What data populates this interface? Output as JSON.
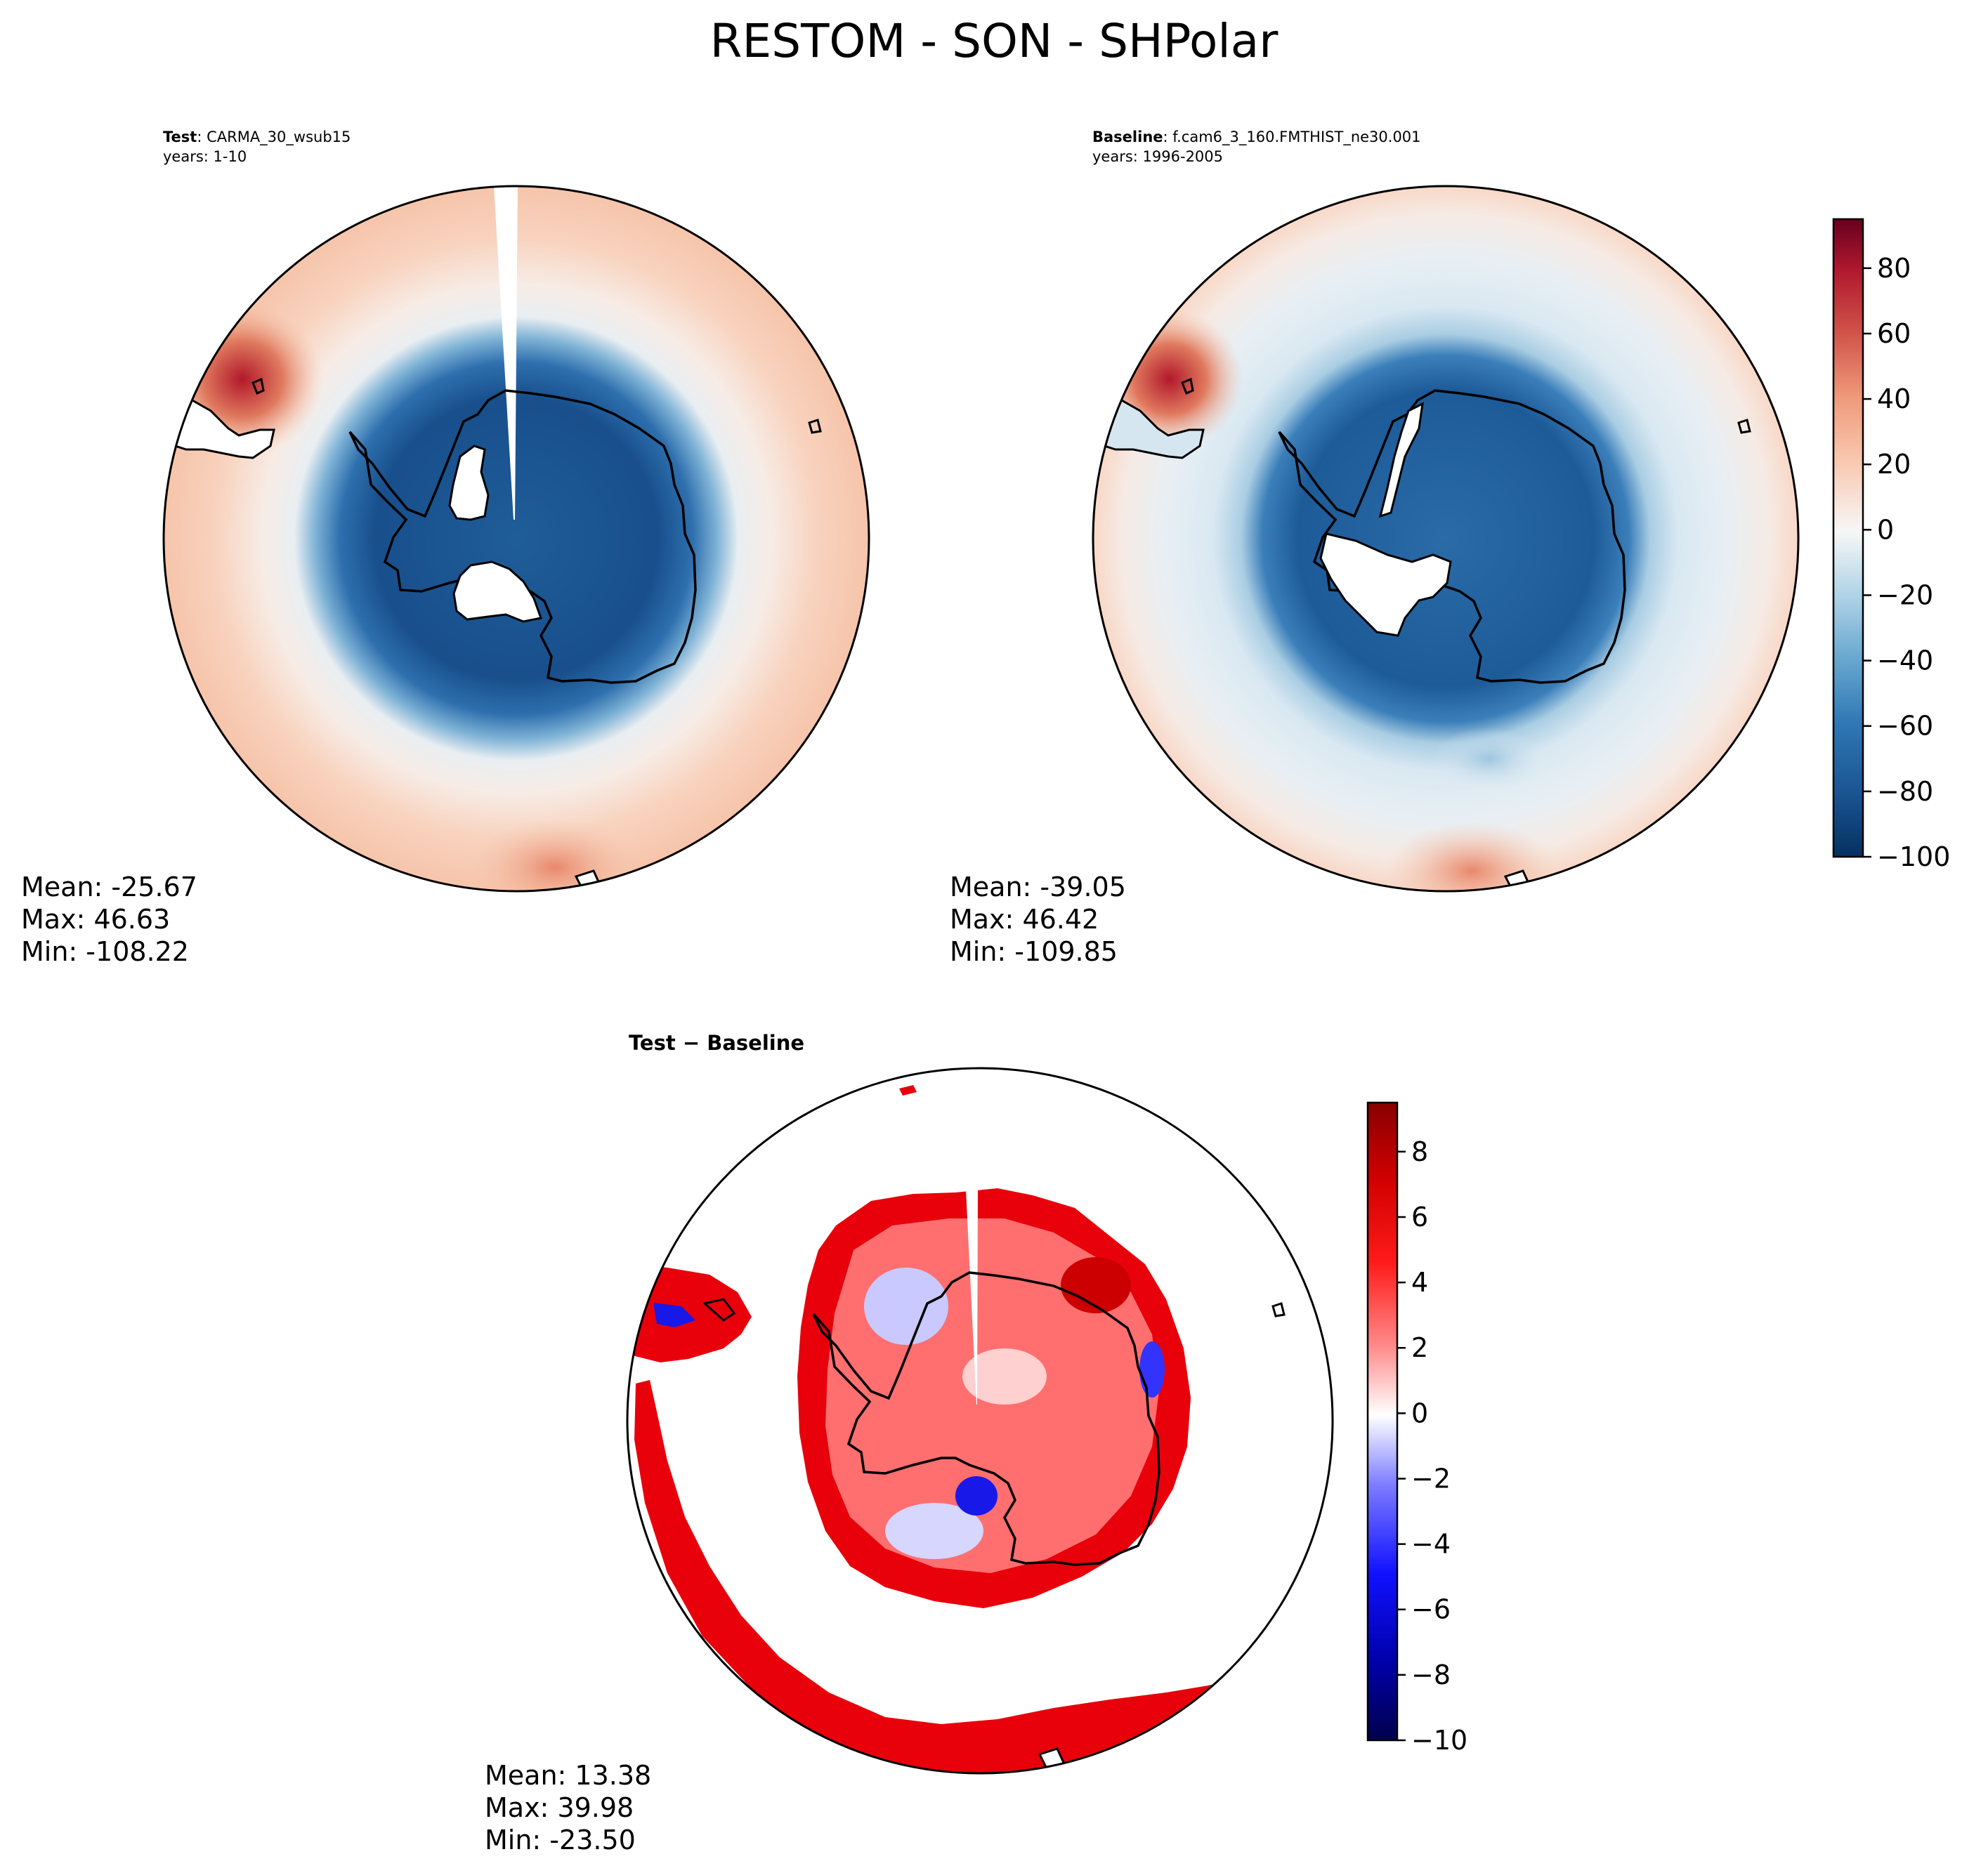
{
  "figure": {
    "title": "RESTOM - SON - SHPolar"
  },
  "panels": [
    {
      "id": "test",
      "label_bold": "Test",
      "label_rest": ": CARMA_30_wsub15",
      "years": "years: 1-10",
      "stats": {
        "mean": "Mean: -25.67",
        "max": "Max: 46.63",
        "min": "Min: -108.22"
      }
    },
    {
      "id": "baseline",
      "label_bold": "Baseline",
      "label_rest": ": f.cam6_3_160.FMTHIST_ne30.001",
      "years": "years: 1996-2005",
      "stats": {
        "mean": "Mean: -39.05",
        "max": "Max: 46.42",
        "min": "Min: -109.85"
      }
    },
    {
      "id": "diff",
      "label": "Test − Baseline",
      "stats": {
        "mean": "Mean: 13.38",
        "max": "Max: 39.98",
        "min": "Min: -23.50"
      }
    }
  ],
  "chart_data": [
    {
      "type": "heatmap",
      "projection": "south polar stereographic",
      "title": "Test : CARMA_30_wsub15",
      "subtitle": "years: 1-10",
      "colormap": "RdBu_r",
      "colorbar": "shared",
      "summary": {
        "mean": -25.67,
        "max": 46.63,
        "min": -108.22
      }
    },
    {
      "type": "heatmap",
      "projection": "south polar stereographic",
      "title": "Baseline : f.cam6_3_160.FMTHIST_ne30.001",
      "subtitle": "years: 1996-2005",
      "colormap": "RdBu_r",
      "colorbar": {
        "range": [
          -100,
          95
        ],
        "ticks": [
          -100,
          -80,
          -60,
          -40,
          -20,
          0,
          20,
          40,
          60,
          80
        ],
        "tick_labels": [
          "−100",
          "−80",
          "−60",
          "−40",
          "−20",
          "0",
          "20",
          "40",
          "60",
          "80"
        ]
      },
      "summary": {
        "mean": -39.05,
        "max": 46.42,
        "min": -109.85
      }
    },
    {
      "type": "heatmap",
      "projection": "south polar stereographic",
      "title": "Test − Baseline",
      "colormap": "seismic",
      "colorbar": {
        "range": [
          -10,
          9.5
        ],
        "ticks": [
          -10,
          -8,
          -6,
          -4,
          -2,
          0,
          2,
          4,
          6,
          8
        ],
        "tick_labels": [
          "−10",
          "−8",
          "−6",
          "−4",
          "−2",
          "0",
          "2",
          "4",
          "6",
          "8"
        ]
      },
      "summary": {
        "mean": 13.38,
        "max": 39.98,
        "min": -23.5
      }
    }
  ],
  "colors": {
    "strong_red": "#67001f",
    "red": "#d6604d",
    "light_red": "#f4a582",
    "pale_red": "#fddbc7",
    "white": "#f7f7f7",
    "pale_blue": "#d1e5f0",
    "light_blue": "#92c5de",
    "blue": "#4393c3",
    "dark_blue": "#2166ac",
    "navy": "#053061",
    "diff_red": "#e8000b",
    "diff_blue": "#1818e8"
  }
}
